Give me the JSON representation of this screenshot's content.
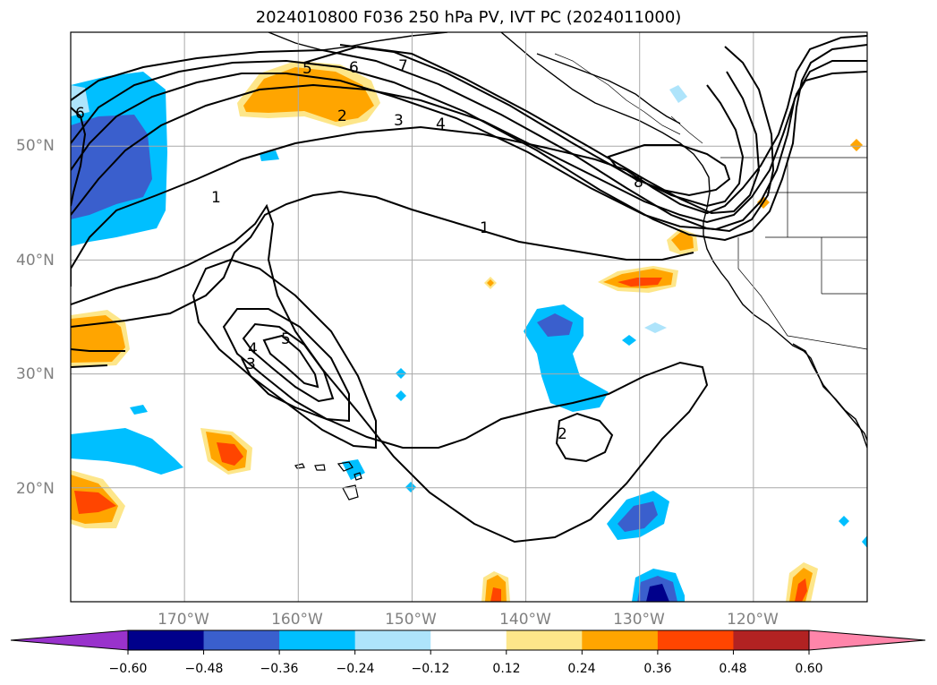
{
  "title": "2024010800 F036 250 hPa PV, IVT PC (2024011000)",
  "map": {
    "lat_labels": [
      "50°N",
      "40°N",
      "30°N",
      "20°N"
    ],
    "lon_labels": [
      "170°W",
      "160°W",
      "150°W",
      "140°W",
      "130°W",
      "120°W"
    ],
    "lon_range": [
      -180,
      -110
    ],
    "lat_range": [
      10,
      60
    ],
    "grid": true
  },
  "contour_labels": [
    "1",
    "1",
    "2",
    "2",
    "3",
    "3",
    "4",
    "4",
    "5",
    "5",
    "6",
    "6",
    "7",
    "8"
  ],
  "colorbar": {
    "ticks": [
      "−0.60",
      "−0.48",
      "−0.36",
      "−0.24",
      "−0.12",
      "0.12",
      "0.24",
      "0.36",
      "0.48",
      "0.60"
    ],
    "colors": [
      "#9932cc",
      "#00008b",
      "#3a5fcd",
      "#00bfff",
      "#aee4fb",
      "#ffffff",
      "#fde68a",
      "#ffa500",
      "#ff4500",
      "#b22222",
      "#ff85aa"
    ]
  }
}
